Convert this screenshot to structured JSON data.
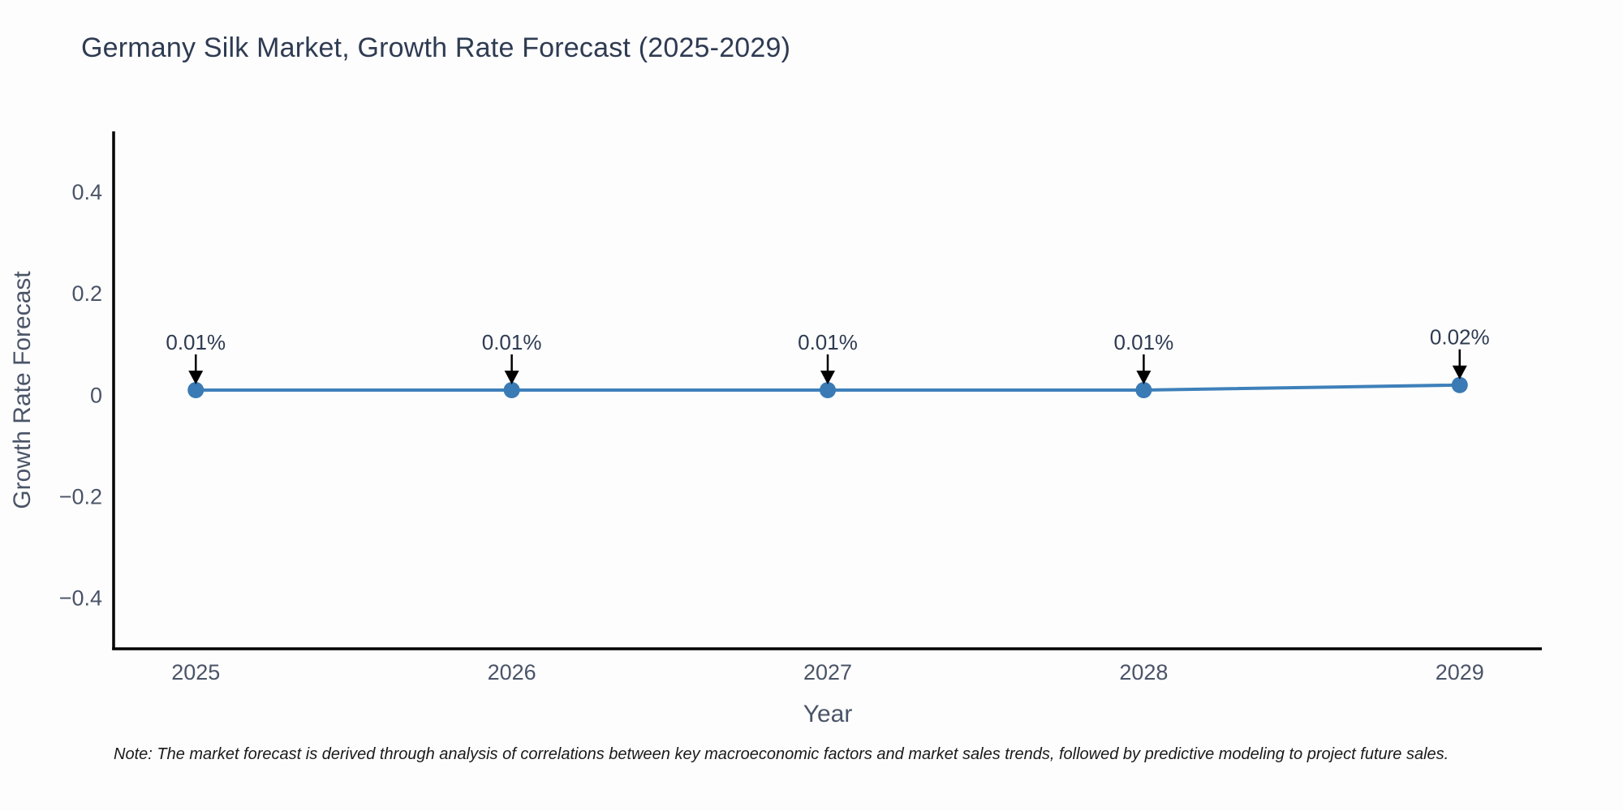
{
  "chart_data": {
    "type": "line",
    "title": "Germany Silk Market, Growth Rate Forecast (2025-2029)",
    "xlabel": "Year",
    "ylabel": "Growth Rate Forecast",
    "categories": [
      2025,
      2026,
      2027,
      2028,
      2029
    ],
    "series": [
      {
        "name": "Growth Rate Forecast",
        "values": [
          0.01,
          0.01,
          0.01,
          0.01,
          0.02
        ]
      }
    ],
    "point_labels": [
      "0.01%",
      "0.01%",
      "0.01%",
      "0.01%",
      "0.02%"
    ],
    "x_ticks": [
      {
        "v": 2025,
        "label": "2025"
      },
      {
        "v": 2026,
        "label": "2026"
      },
      {
        "v": 2027,
        "label": "2027"
      },
      {
        "v": 2028,
        "label": "2028"
      },
      {
        "v": 2029,
        "label": "2029"
      }
    ],
    "y_ticks": [
      {
        "v": 0.4,
        "label": "0.4"
      },
      {
        "v": 0.2,
        "label": "0.2"
      },
      {
        "v": 0,
        "label": "0"
      },
      {
        "v": -0.2,
        "label": "−0.2"
      },
      {
        "v": -0.4,
        "label": "−0.4"
      }
    ],
    "xlim": [
      2024.74,
      2029.26
    ],
    "ylim": [
      -0.5,
      0.52
    ],
    "grid": false,
    "legend": "none",
    "colors": {
      "line": "#3e80ba",
      "marker": "#3a7ab5",
      "axis": "#000000",
      "tick_text": "#4a5468",
      "axis_title_text": "#4a5468",
      "title_text": "#2e3b52",
      "annotation_text": "#2e3b52",
      "annotation_arrow": "#000000",
      "background": "#fdfdfd",
      "note_text": "#1a1a1a"
    }
  },
  "footer": {
    "note": "Note: The market forecast is derived through analysis of correlations between key macroeconomic factors and market sales trends, followed by predictive modeling to project future sales."
  }
}
